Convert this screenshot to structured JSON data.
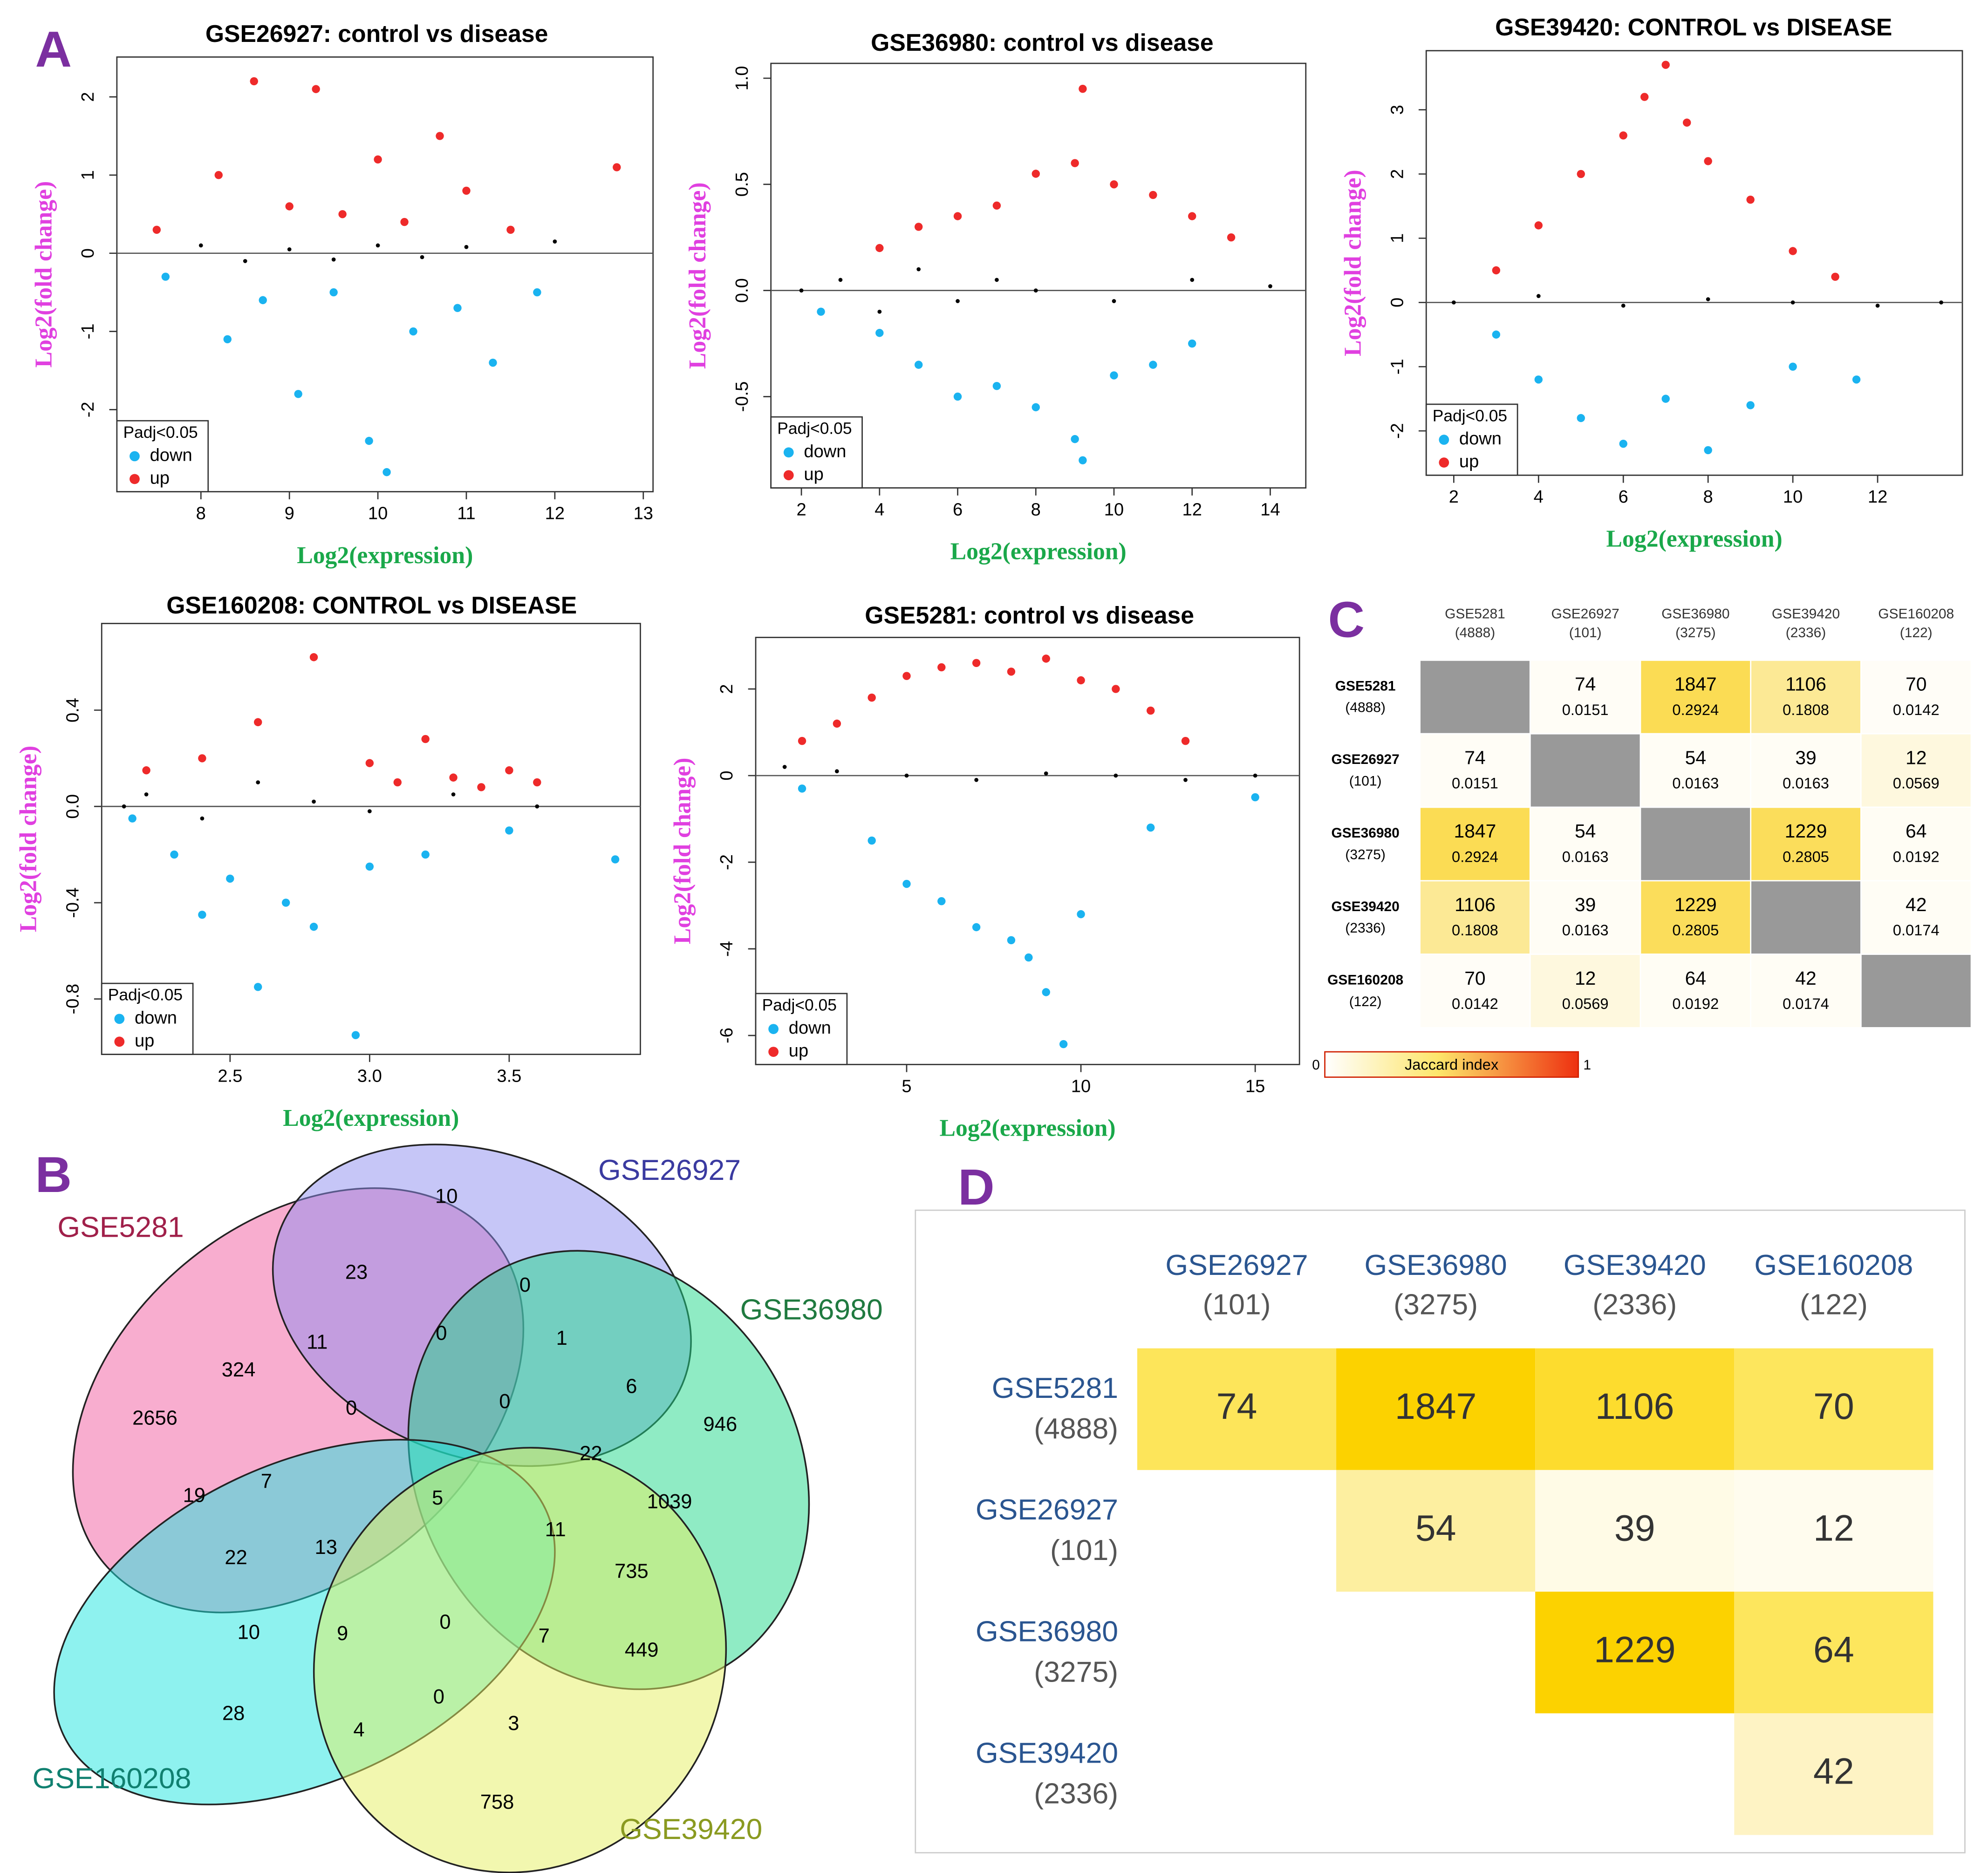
{
  "panels": [
    "A",
    "B",
    "C",
    "D"
  ],
  "chart_data": [
    {
      "type": "scatter",
      "title": "GSE26927: control vs disease",
      "xlabel": "Log2(expression)",
      "ylabel": "Log2(fold change)",
      "legend_title": "Padj<0.05",
      "xlim": [
        7.05,
        13.11
      ],
      "ylim": [
        -3.05,
        2.51
      ],
      "xticks": [
        8,
        9,
        10,
        11,
        12,
        13
      ],
      "yticks": [
        -2,
        -1,
        0,
        1,
        2
      ],
      "series": [
        {
          "name": "down",
          "color": "#1ab3f0",
          "x": [
            7.6,
            8.3,
            8.7,
            9.1,
            9.5,
            9.9,
            10.1,
            10.4,
            10.9,
            11.3,
            11.8
          ],
          "values": [
            -0.3,
            -1.1,
            -0.6,
            -1.8,
            -0.5,
            -2.4,
            -2.8,
            -1.0,
            -0.7,
            -1.4,
            -0.5
          ]
        },
        {
          "name": "up",
          "color": "#ee2a2a",
          "x": [
            7.5,
            8.2,
            8.6,
            9,
            9.3,
            9.6,
            10,
            10.3,
            10.7,
            11,
            11.5,
            12.7
          ],
          "values": [
            0.3,
            1.0,
            2.2,
            0.6,
            2.1,
            0.5,
            1.2,
            0.4,
            1.5,
            0.8,
            0.3,
            1.1
          ]
        },
        {
          "color": "#000000",
          "x": [
            8,
            8.5,
            9,
            9.5,
            10,
            10.5,
            11,
            12
          ],
          "values": [
            0.1,
            -0.1,
            0.05,
            -0.08,
            0.1,
            -0.05,
            0.08,
            0.15
          ]
        }
      ]
    },
    {
      "type": "scatter",
      "title": "GSE36980: control vs disease",
      "xlabel": "Log2(expression)",
      "ylabel": "Log2(fold change)",
      "legend_title": "Padj<0.05",
      "xlim": [
        1.22,
        14.91
      ],
      "ylim": [
        -0.93,
        1.07
      ],
      "xticks": [
        2,
        4,
        6,
        8,
        10,
        12,
        14
      ],
      "yticks": [
        {
          "value": -0.5,
          "label": "-0.5"
        },
        {
          "value": 0,
          "label": "0.0"
        },
        0.5,
        {
          "value": 1,
          "label": "1.0"
        }
      ],
      "series": [
        {
          "name": "down",
          "color": "#1ab3f0",
          "x": [
            2.5,
            4,
            5,
            6,
            7,
            8,
            9,
            9.2,
            10,
            11,
            12
          ],
          "values": [
            -0.1,
            -0.2,
            -0.35,
            -0.5,
            -0.45,
            -0.55,
            -0.7,
            -0.8,
            -0.4,
            -0.35,
            -0.25
          ]
        },
        {
          "name": "up",
          "color": "#ee2a2a",
          "x": [
            4,
            5,
            6,
            7,
            8,
            9,
            9.2,
            10,
            11,
            12,
            13
          ],
          "values": [
            0.2,
            0.3,
            0.35,
            0.4,
            0.55,
            0.6,
            0.95,
            0.5,
            0.45,
            0.35,
            0.25
          ]
        },
        {
          "color": "#000000",
          "x": [
            2,
            3,
            4,
            5,
            6,
            7,
            8,
            10,
            12,
            14
          ],
          "values": [
            0,
            0.05,
            -0.1,
            0.1,
            -0.05,
            0.05,
            0,
            -0.05,
            0.05,
            0.02
          ]
        }
      ]
    },
    {
      "type": "scatter",
      "title": "GSE39420: CONTROL vs DISEASE",
      "xlabel": "Log2(expression)",
      "ylabel": "Log2(fold change)",
      "legend_title": "Padj<0.05",
      "xlim": [
        1.35,
        14.0
      ],
      "ylim": [
        -2.69,
        3.92
      ],
      "xticks": [
        2,
        4,
        6,
        8,
        10,
        12
      ],
      "yticks": [
        -2,
        -1,
        0,
        1,
        2,
        3
      ],
      "series": [
        {
          "name": "down",
          "color": "#1ab3f0",
          "x": [
            3,
            4,
            5,
            6,
            7,
            8,
            9,
            10,
            11.5
          ],
          "values": [
            -0.5,
            -1.2,
            -1.8,
            -2.2,
            -1.5,
            -2.3,
            -1.6,
            -1.0,
            -1.2
          ]
        },
        {
          "name": "up",
          "color": "#ee2a2a",
          "x": [
            3,
            4,
            5,
            6,
            6.5,
            7,
            7.5,
            8,
            9,
            10,
            11
          ],
          "values": [
            0.5,
            1.2,
            2.0,
            2.6,
            3.2,
            3.7,
            2.8,
            2.2,
            1.6,
            0.8,
            0.4
          ]
        },
        {
          "color": "#000000",
          "x": [
            2,
            4,
            6,
            8,
            10,
            12,
            13.5
          ],
          "values": [
            0,
            0.1,
            -0.05,
            0.05,
            0,
            -0.05,
            0
          ]
        }
      ]
    },
    {
      "type": "scatter",
      "title": "GSE160208: CONTROL vs DISEASE",
      "xlabel": "Log2(expression)",
      "ylabel": "Log2(fold change)",
      "legend_title": "Padj<0.05",
      "xlim": [
        2.04,
        3.97
      ],
      "ylim": [
        -1.03,
        0.76
      ],
      "xticks": [
        2.5,
        {
          "value": 3,
          "label": "3.0"
        },
        3.5
      ],
      "yticks": [
        -0.8,
        -0.4,
        {
          "value": 0,
          "label": "0.0"
        },
        0.4
      ],
      "series": [
        {
          "name": "down",
          "color": "#1ab3f0",
          "x": [
            2.15,
            2.3,
            2.4,
            2.5,
            2.6,
            2.7,
            2.8,
            2.95,
            3.0,
            3.2,
            3.5,
            3.88
          ],
          "values": [
            -0.05,
            -0.2,
            -0.45,
            -0.3,
            -0.75,
            -0.4,
            -0.5,
            -0.95,
            -0.25,
            -0.2,
            -0.1,
            -0.22
          ]
        },
        {
          "name": "up",
          "color": "#ee2a2a",
          "x": [
            2.2,
            2.4,
            2.6,
            2.8,
            3.0,
            3.1,
            3.2,
            3.3,
            3.4,
            3.5,
            3.6
          ],
          "values": [
            0.15,
            0.2,
            0.35,
            0.62,
            0.18,
            0.1,
            0.28,
            0.12,
            0.08,
            0.15,
            0.1
          ]
        },
        {
          "color": "#000000",
          "x": [
            2.12,
            2.2,
            2.4,
            2.6,
            2.8,
            3.0,
            3.3,
            3.6
          ],
          "values": [
            0,
            0.05,
            -0.05,
            0.1,
            0.02,
            -0.02,
            0.05,
            0
          ]
        }
      ]
    },
    {
      "type": "scatter",
      "title": "GSE5281: control vs disease",
      "xlabel": "Log2(expression)",
      "ylabel": "Log2(fold change)",
      "legend_title": "Padj<0.05",
      "xlim": [
        0.67,
        16.27
      ],
      "ylim": [
        -6.67,
        3.19
      ],
      "xticks": [
        5,
        10,
        15
      ],
      "yticks": [
        -6,
        -4,
        -2,
        0,
        2
      ],
      "series": [
        {
          "name": "down",
          "color": "#1ab3f0",
          "x": [
            2,
            4,
            5,
            6,
            7,
            8,
            8.5,
            9,
            9.5,
            10,
            12,
            15
          ],
          "values": [
            -0.3,
            -1.5,
            -2.5,
            -2.9,
            -3.5,
            -3.8,
            -4.2,
            -5.0,
            -6.2,
            -3.2,
            -1.2,
            -0.5
          ]
        },
        {
          "name": "up",
          "color": "#ee2a2a",
          "x": [
            2,
            3,
            4,
            5,
            6,
            7,
            8,
            9,
            10,
            11,
            12,
            13
          ],
          "values": [
            0.8,
            1.2,
            1.8,
            2.3,
            2.5,
            2.6,
            2.4,
            2.7,
            2.2,
            2.0,
            1.5,
            0.8
          ]
        },
        {
          "color": "#000000",
          "x": [
            1.5,
            3,
            5,
            7,
            9,
            11,
            13,
            15
          ],
          "values": [
            0.2,
            0.1,
            0,
            -0.1,
            0.05,
            0,
            -0.1,
            0
          ]
        }
      ]
    },
    {
      "type": "venn",
      "sets": [
        "GSE5281",
        "GSE26927",
        "GSE36980",
        "GSE160208",
        "GSE39420"
      ],
      "values": [
        10,
        23,
        0,
        11,
        324,
        0,
        1,
        2656,
        0,
        0,
        6,
        946,
        7,
        22,
        19,
        5,
        1039,
        22,
        13,
        11,
        735,
        10,
        9,
        0,
        7,
        449,
        28,
        0,
        3,
        4,
        758
      ]
    },
    {
      "type": "heatmap",
      "columns": [
        "GSE5281",
        "GSE26927",
        "GSE36980",
        "GSE39420",
        "GSE160208"
      ],
      "column_counts": [
        "(4888)",
        "(101)",
        "(3275)",
        "(2336)",
        "(122)"
      ],
      "rows": [
        "GSE5281",
        "GSE26927",
        "GSE36980",
        "GSE39420",
        "GSE160208"
      ],
      "row_counts": [
        "(4888)",
        "(101)",
        "(3275)",
        "(2336)",
        "(122)"
      ],
      "values": [
        [
          null,
          74,
          1847,
          1106,
          70
        ],
        [
          74,
          null,
          54,
          39,
          12
        ],
        [
          1847,
          54,
          null,
          1229,
          64
        ],
        [
          1106,
          39,
          1229,
          null,
          42
        ],
        [
          70,
          12,
          64,
          42,
          null
        ]
      ],
      "jaccard": [
        [
          null,
          0.0151,
          0.2924,
          0.1808,
          0.0142
        ],
        [
          0.0151,
          null,
          0.0163,
          0.0163,
          0.0569
        ],
        [
          0.2924,
          0.0163,
          null,
          0.2805,
          0.0192
        ],
        [
          0.1808,
          0.0163,
          0.2805,
          null,
          0.0174
        ],
        [
          0.0142,
          0.0569,
          0.0192,
          0.0174,
          null
        ]
      ],
      "colorbar_label": "Jaccard index",
      "colorbar_ticks": [
        0,
        1
      ]
    },
    {
      "type": "table-heatmap",
      "columns": [
        "GSE26927",
        "GSE36980",
        "GSE39420",
        "GSE160208"
      ],
      "column_counts": [
        "(101)",
        "(3275)",
        "(2336)",
        "(122)"
      ],
      "rows": [
        "GSE5281",
        "GSE26927",
        "GSE36980",
        "GSE39420"
      ],
      "row_counts": [
        "(4888)",
        "(101)",
        "(3275)",
        "(2336)"
      ],
      "values": [
        [
          74,
          1847,
          1106,
          70
        ],
        [
          null,
          54,
          39,
          12
        ],
        [
          null,
          null,
          1229,
          64
        ],
        [
          null,
          null,
          null,
          42
        ]
      ],
      "colors": [
        [
          "#fde55a",
          "#fcd200",
          "#fddc2e",
          "#fde65d"
        ],
        [
          null,
          "#fdefa0",
          "#fffbe6",
          "#fffcee"
        ],
        [
          null,
          null,
          "#fcd200",
          "#fde65d"
        ],
        [
          null,
          null,
          null,
          "#fef3c4"
        ]
      ]
    }
  ]
}
